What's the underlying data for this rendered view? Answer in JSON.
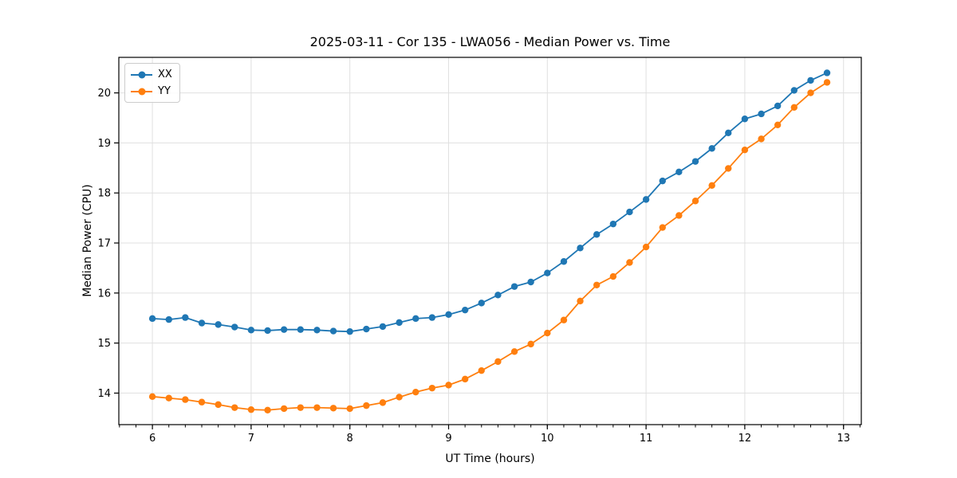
{
  "chart_data": {
    "type": "line",
    "title": "2025-03-11 - Cor 135 - LWA056 - Median Power vs. Time",
    "xlabel": "UT Time (hours)",
    "ylabel": "Median Power (CPU)",
    "xlim": [
      5.66,
      13.18
    ],
    "ylim": [
      13.37,
      20.71
    ],
    "xticks": [
      6,
      7,
      8,
      9,
      10,
      11,
      12,
      13
    ],
    "yticks": [
      14,
      15,
      16,
      17,
      18,
      19,
      20
    ],
    "x_minor_step": 0.166667,
    "grid": true,
    "grid_color": "#e0e0e0",
    "spine_color": "#000000",
    "legend_position": "upper left",
    "marker": "circle",
    "x": [
      6.0,
      6.167,
      6.333,
      6.5,
      6.667,
      6.833,
      7.0,
      7.167,
      7.333,
      7.5,
      7.667,
      7.833,
      8.0,
      8.167,
      8.333,
      8.5,
      8.667,
      8.833,
      9.0,
      9.167,
      9.333,
      9.5,
      9.667,
      9.833,
      10.0,
      10.167,
      10.333,
      10.5,
      10.667,
      10.833,
      11.0,
      11.167,
      11.333,
      11.5,
      11.667,
      11.833,
      12.0,
      12.167,
      12.333,
      12.5,
      12.667,
      12.833
    ],
    "series": [
      {
        "name": "XX",
        "color": "#1f77b4",
        "values": [
          15.49,
          15.47,
          15.51,
          15.4,
          15.37,
          15.32,
          15.26,
          15.25,
          15.27,
          15.27,
          15.26,
          15.24,
          15.23,
          15.28,
          15.33,
          15.41,
          15.49,
          15.51,
          15.57,
          15.66,
          15.8,
          15.96,
          16.13,
          16.22,
          16.4,
          16.63,
          16.9,
          17.17,
          17.38,
          17.62,
          17.87,
          18.24,
          18.42,
          18.63,
          18.89,
          19.2,
          19.48,
          19.58,
          19.74,
          20.05,
          20.25,
          20.4
        ]
      },
      {
        "name": "YY",
        "color": "#ff7f0e",
        "values": [
          13.93,
          13.9,
          13.87,
          13.82,
          13.77,
          13.71,
          13.67,
          13.66,
          13.69,
          13.71,
          13.71,
          13.7,
          13.69,
          13.75,
          13.81,
          13.92,
          14.02,
          14.1,
          14.16,
          14.28,
          14.45,
          14.63,
          14.83,
          14.98,
          15.2,
          15.46,
          15.84,
          16.16,
          16.33,
          16.61,
          16.92,
          17.31,
          17.55,
          17.84,
          18.15,
          18.49,
          18.86,
          19.08,
          19.36,
          19.71,
          20.0,
          20.21
        ]
      }
    ]
  }
}
